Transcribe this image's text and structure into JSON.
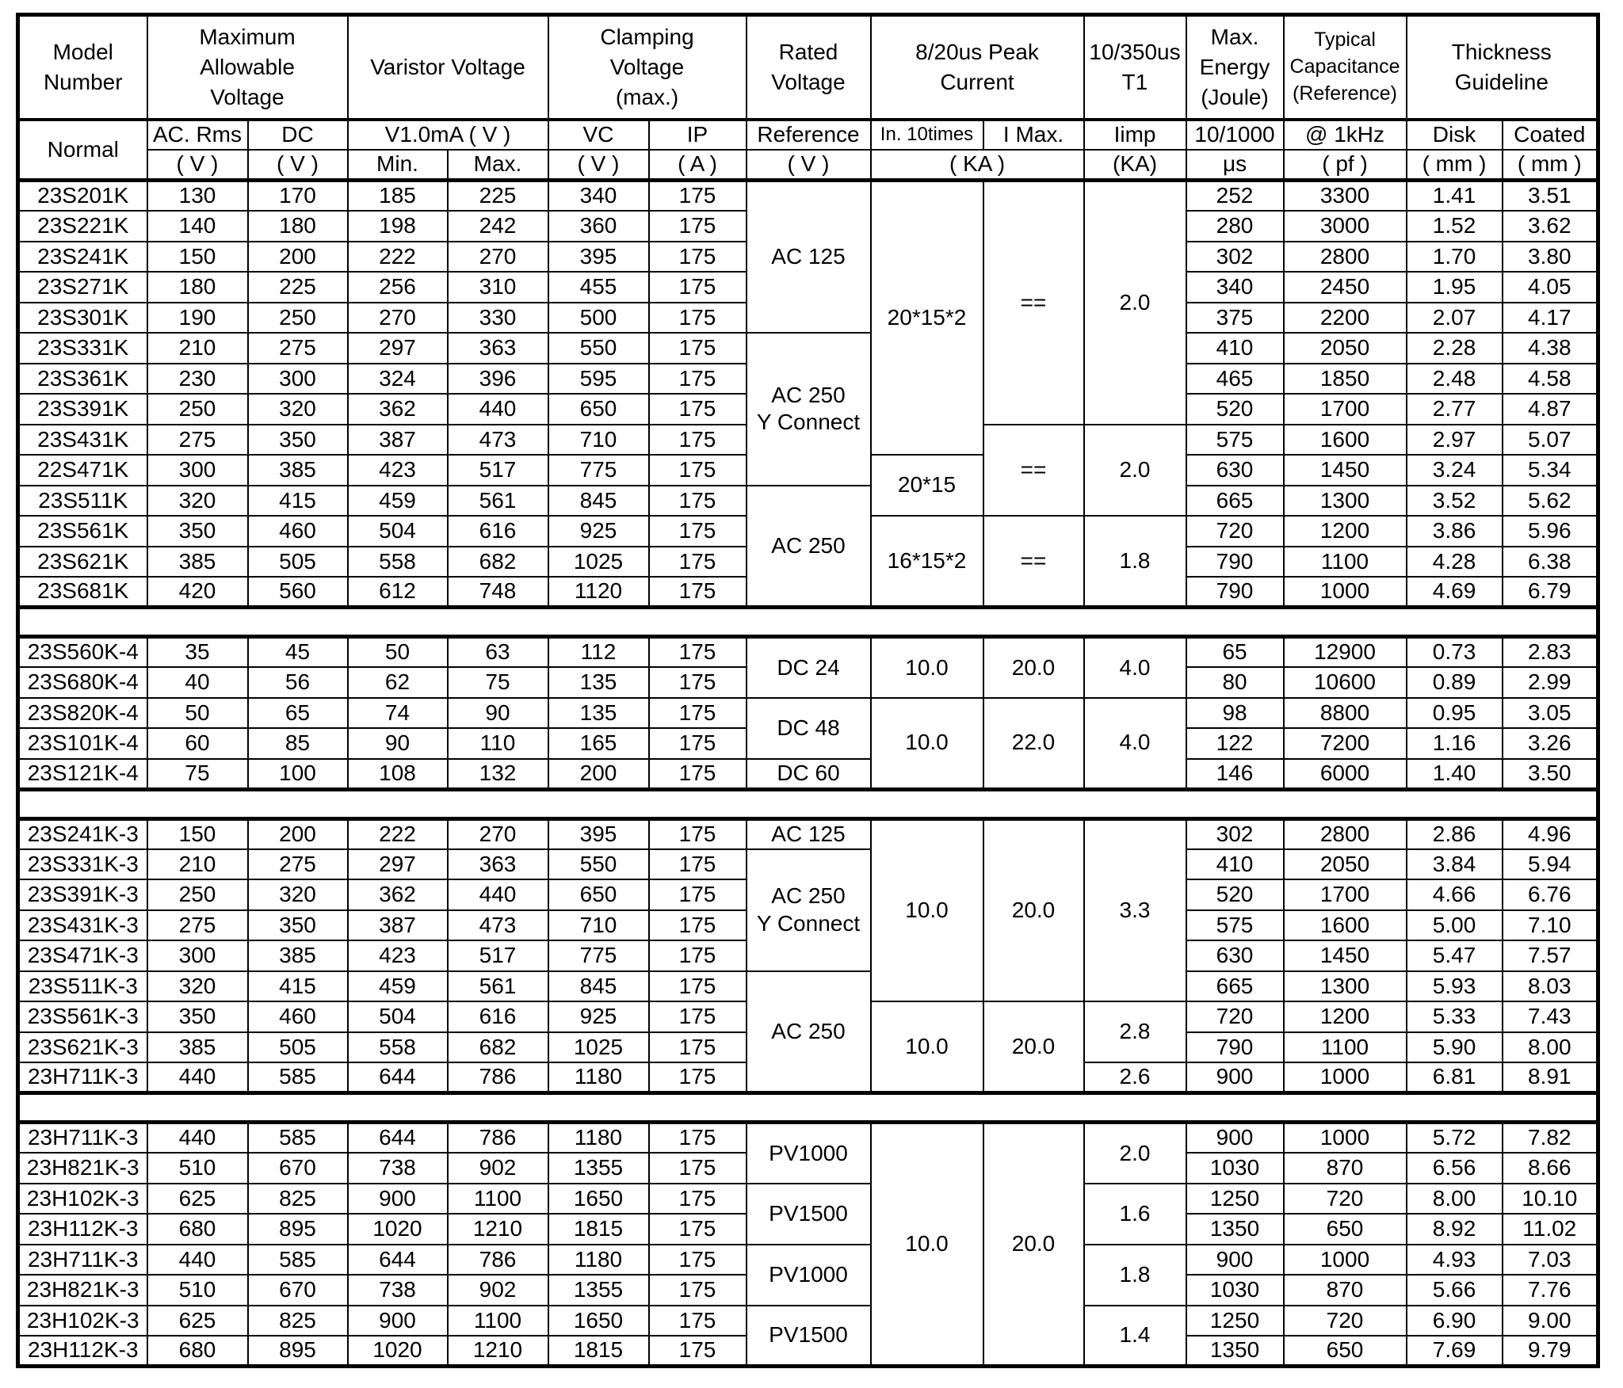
{
  "table": {
    "border_color": "#000000",
    "text_color": "#000000",
    "header": [
      [
        {
          "t": "Model\nNumber"
        },
        {
          "t": "Maximum\nAllowable\nVoltage",
          "cs": 2
        },
        {
          "t": "Varistor Voltage",
          "cs": 2
        },
        {
          "t": "Clamping\nVoltage\n(max.)",
          "cs": 2
        },
        {
          "t": "Rated\nVoltage"
        },
        {
          "t": "8/20us  Peak\nCurrent",
          "cs": 2
        },
        {
          "t": "10/350us\nT1"
        },
        {
          "t": "Max.\nEnergy\n(Joule)"
        },
        {
          "t": "Typical\nCapacitance\n(Reference)"
        },
        {
          "t": "Thickness\nGuideline",
          "cs": 2
        }
      ],
      [
        {
          "t": "Normal",
          "rs": 2
        },
        {
          "t": "AC. Rms"
        },
        {
          "t": "DC"
        },
        {
          "t": "V1.0mA ( V )",
          "cs": 2
        },
        {
          "t": "VC"
        },
        {
          "t": "IP"
        },
        {
          "t": "Reference"
        },
        {
          "t": "In. 10times"
        },
        {
          "t": "I Max."
        },
        {
          "t": "Iimp"
        },
        {
          "t": "10/1000"
        },
        {
          "t": "@ 1kHz"
        },
        {
          "t": "Disk"
        },
        {
          "t": "Coated"
        }
      ],
      [
        {
          "t": "( V )"
        },
        {
          "t": "( V )"
        },
        {
          "t": "Min."
        },
        {
          "t": "Max."
        },
        {
          "t": "( V )"
        },
        {
          "t": "( A )"
        },
        {
          "t": "( V )"
        },
        {
          "t": "( KA )",
          "cs": 2
        },
        {
          "t": "(KA)"
        },
        {
          "t": "μs"
        },
        {
          "t": "( pf )"
        },
        {
          "t": "( mm )"
        },
        {
          "t": "( mm )"
        }
      ]
    ],
    "body": [
      {
        "type": "rows",
        "rows": [
          [
            "23S201K",
            "130",
            "170",
            "185",
            "225",
            "340",
            "175",
            {
              "t": "AC 125",
              "rs": 5
            },
            {
              "t": "20*15*2",
              "rs": 9
            },
            {
              "t": "==",
              "rs": 8
            },
            {
              "t": "2.0",
              "rs": 8
            },
            "252",
            "3300",
            "1.41",
            "3.51"
          ],
          [
            "23S221K",
            "140",
            "180",
            "198",
            "242",
            "360",
            "175",
            "280",
            "3000",
            "1.52",
            "3.62"
          ],
          [
            "23S241K",
            "150",
            "200",
            "222",
            "270",
            "395",
            "175",
            "302",
            "2800",
            "1.70",
            "3.80"
          ],
          [
            "23S271K",
            "180",
            "225",
            "256",
            "310",
            "455",
            "175",
            "340",
            "2450",
            "1.95",
            "4.05"
          ],
          [
            "23S301K",
            "190",
            "250",
            "270",
            "330",
            "500",
            "175",
            "375",
            "2200",
            "2.07",
            "4.17"
          ],
          [
            "23S331K",
            "210",
            "275",
            "297",
            "363",
            "550",
            "175",
            {
              "t": "AC 250\nY Connect",
              "rs": 5
            },
            "410",
            "2050",
            "2.28",
            "4.38"
          ],
          [
            "23S361K",
            "230",
            "300",
            "324",
            "396",
            "595",
            "175",
            "465",
            "1850",
            "2.48",
            "4.58"
          ],
          [
            "23S391K",
            "250",
            "320",
            "362",
            "440",
            "650",
            "175",
            "520",
            "1700",
            "2.77",
            "4.87"
          ],
          [
            "23S431K",
            "275",
            "350",
            "387",
            "473",
            "710",
            "175",
            {
              "t": "==",
              "rs": 3
            },
            {
              "t": "2.0",
              "rs": 3
            },
            "575",
            "1600",
            "2.97",
            "5.07"
          ],
          [
            "22S471K",
            "300",
            "385",
            "423",
            "517",
            "775",
            "175",
            {
              "t": "20*15",
              "rs": 2
            },
            "630",
            "1450",
            "3.24",
            "5.34"
          ],
          [
            "23S511K",
            "320",
            "415",
            "459",
            "561",
            "845",
            "175",
            {
              "t": "AC 250",
              "rs": 4
            },
            "665",
            "1300",
            "3.52",
            "5.62"
          ],
          [
            "23S561K",
            "350",
            "460",
            "504",
            "616",
            "925",
            "175",
            {
              "t": "16*15*2",
              "rs": 3
            },
            {
              "t": "==",
              "rs": 3
            },
            {
              "t": "1.8",
              "rs": 3
            },
            "720",
            "1200",
            "3.86",
            "5.96"
          ],
          [
            "23S621K",
            "385",
            "505",
            "558",
            "682",
            "1025",
            "175",
            "790",
            "1100",
            "4.28",
            "6.38"
          ],
          [
            "23S681K",
            "420",
            "560",
            "612",
            "748",
            "1120",
            "175",
            "790",
            "1000",
            "4.69",
            "6.79"
          ]
        ]
      },
      {
        "type": "gap"
      },
      {
        "type": "rows",
        "rows": [
          [
            "23S560K-4",
            "35",
            "45",
            "50",
            "63",
            "112",
            "175",
            {
              "t": "DC 24",
              "rs": 2
            },
            {
              "t": "10.0",
              "rs": 2
            },
            {
              "t": "20.0",
              "rs": 2
            },
            {
              "t": "4.0",
              "rs": 2
            },
            "65",
            "12900",
            "0.73",
            "2.83"
          ],
          [
            "23S680K-4",
            "40",
            "56",
            "62",
            "75",
            "135",
            "175",
            "80",
            "10600",
            "0.89",
            "2.99"
          ],
          [
            "23S820K-4",
            "50",
            "65",
            "74",
            "90",
            "135",
            "175",
            {
              "t": "DC 48",
              "rs": 2
            },
            {
              "t": "10.0",
              "rs": 3
            },
            {
              "t": "22.0",
              "rs": 3
            },
            {
              "t": "4.0",
              "rs": 3
            },
            "98",
            "8800",
            "0.95",
            "3.05"
          ],
          [
            "23S101K-4",
            "60",
            "85",
            "90",
            "110",
            "165",
            "175",
            "122",
            "7200",
            "1.16",
            "3.26"
          ],
          [
            "23S121K-4",
            "75",
            "100",
            "108",
            "132",
            "200",
            "175",
            "DC 60",
            "146",
            "6000",
            "1.40",
            "3.50"
          ]
        ]
      },
      {
        "type": "gap"
      },
      {
        "type": "rows",
        "rows": [
          [
            "23S241K-3",
            "150",
            "200",
            "222",
            "270",
            "395",
            "175",
            "AC 125",
            {
              "t": "10.0",
              "rs": 6
            },
            {
              "t": "20.0",
              "rs": 6
            },
            {
              "t": "3.3",
              "rs": 6
            },
            "302",
            "2800",
            "2.86",
            "4.96"
          ],
          [
            "23S331K-3",
            "210",
            "275",
            "297",
            "363",
            "550",
            "175",
            {
              "t": "AC 250\nY Connect",
              "rs": 4
            },
            "410",
            "2050",
            "3.84",
            "5.94"
          ],
          [
            "23S391K-3",
            "250",
            "320",
            "362",
            "440",
            "650",
            "175",
            "520",
            "1700",
            "4.66",
            "6.76"
          ],
          [
            "23S431K-3",
            "275",
            "350",
            "387",
            "473",
            "710",
            "175",
            "575",
            "1600",
            "5.00",
            "7.10"
          ],
          [
            "23S471K-3",
            "300",
            "385",
            "423",
            "517",
            "775",
            "175",
            "630",
            "1450",
            "5.47",
            "7.57"
          ],
          [
            "23S511K-3",
            "320",
            "415",
            "459",
            "561",
            "845",
            "175",
            {
              "t": "AC 250",
              "rs": 4
            },
            "665",
            "1300",
            "5.93",
            "8.03"
          ],
          [
            "23S561K-3",
            "350",
            "460",
            "504",
            "616",
            "925",
            "175",
            {
              "t": "10.0",
              "rs": 3
            },
            {
              "t": "20.0",
              "rs": 3
            },
            {
              "t": "2.8",
              "rs": 2
            },
            "720",
            "1200",
            "5.33",
            "7.43"
          ],
          [
            "23S621K-3",
            "385",
            "505",
            "558",
            "682",
            "1025",
            "175",
            "790",
            "1100",
            "5.90",
            "8.00"
          ],
          [
            "23H711K-3",
            "440",
            "585",
            "644",
            "786",
            "1180",
            "175",
            "2.6",
            "900",
            "1000",
            "6.81",
            "8.91"
          ]
        ]
      },
      {
        "type": "gap"
      },
      {
        "type": "rows",
        "rows": [
          [
            "23H711K-3",
            "440",
            "585",
            "644",
            "786",
            "1180",
            "175",
            {
              "t": "PV1000",
              "rs": 2
            },
            {
              "t": "10.0",
              "rs": 8
            },
            {
              "t": "20.0",
              "rs": 8
            },
            {
              "t": "2.0",
              "rs": 2
            },
            "900",
            "1000",
            "5.72",
            "7.82"
          ],
          [
            "23H821K-3",
            "510",
            "670",
            "738",
            "902",
            "1355",
            "175",
            "1030",
            "870",
            "6.56",
            "8.66"
          ],
          [
            "23H102K-3",
            "625",
            "825",
            "900",
            "1100",
            "1650",
            "175",
            {
              "t": "PV1500",
              "rs": 2
            },
            {
              "t": "1.6",
              "rs": 2
            },
            "1250",
            "720",
            "8.00",
            "10.10"
          ],
          [
            "23H112K-3",
            "680",
            "895",
            "1020",
            "1210",
            "1815",
            "175",
            "1350",
            "650",
            "8.92",
            "11.02"
          ],
          [
            "23H711K-3",
            "440",
            "585",
            "644",
            "786",
            "1180",
            "175",
            {
              "t": "PV1000",
              "rs": 2
            },
            {
              "t": "1.8",
              "rs": 2
            },
            "900",
            "1000",
            "4.93",
            "7.03"
          ],
          [
            "23H821K-3",
            "510",
            "670",
            "738",
            "902",
            "1355",
            "175",
            "1030",
            "870",
            "5.66",
            "7.76"
          ],
          [
            "23H102K-3",
            "625",
            "825",
            "900",
            "1100",
            "1650",
            "175",
            {
              "t": "PV1500",
              "rs": 2
            },
            {
              "t": "1.4",
              "rs": 2
            },
            "1250",
            "720",
            "6.90",
            "9.00"
          ],
          [
            "23H112K-3",
            "680",
            "895",
            "1020",
            "1210",
            "1815",
            "175",
            "1350",
            "650",
            "7.69",
            "9.79"
          ]
        ]
      }
    ]
  }
}
